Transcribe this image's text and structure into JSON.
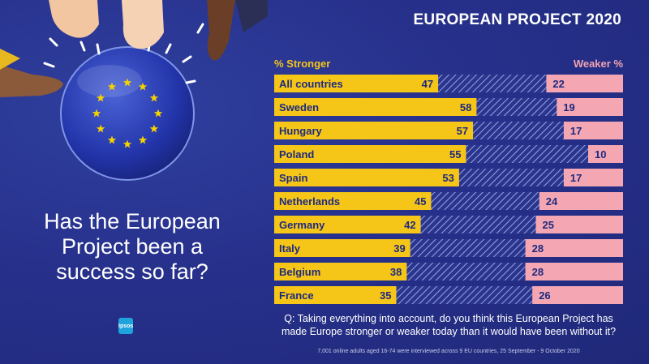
{
  "title": "EUROPEAN PROJECT 2020",
  "headline": "Has the European Project been a success so far?",
  "question": "Q: Taking everything into account, do you think this European Project has made Europe stronger or weaker today than it would have been without it?",
  "footnote": "7,001 online adults aged 16-74 were interviewed across 9 EU countries, 25 September - 9 October 2020",
  "logo_text": "Ipsos",
  "colors": {
    "background": "#27318c",
    "stronger": "#f5c518",
    "weaker": "#f4a7b3",
    "hatch": "#2a3590",
    "hatch_line": "#9aa3d8"
  },
  "chart_data": {
    "type": "bar",
    "legend": [
      "% Stronger",
      "Weaker %"
    ],
    "categories": [
      "All countries",
      "Sweden",
      "Hungary",
      "Poland",
      "Spain",
      "Netherlands",
      "Germany",
      "Italy",
      "Belgium",
      "France"
    ],
    "series": [
      {
        "name": "% Stronger",
        "values": [
          47,
          58,
          57,
          55,
          53,
          45,
          42,
          39,
          38,
          35
        ]
      },
      {
        "name": "Weaker %",
        "values": [
          22,
          19,
          17,
          10,
          17,
          24,
          25,
          28,
          28,
          26
        ]
      }
    ],
    "xlim": [
      0,
      100
    ]
  }
}
